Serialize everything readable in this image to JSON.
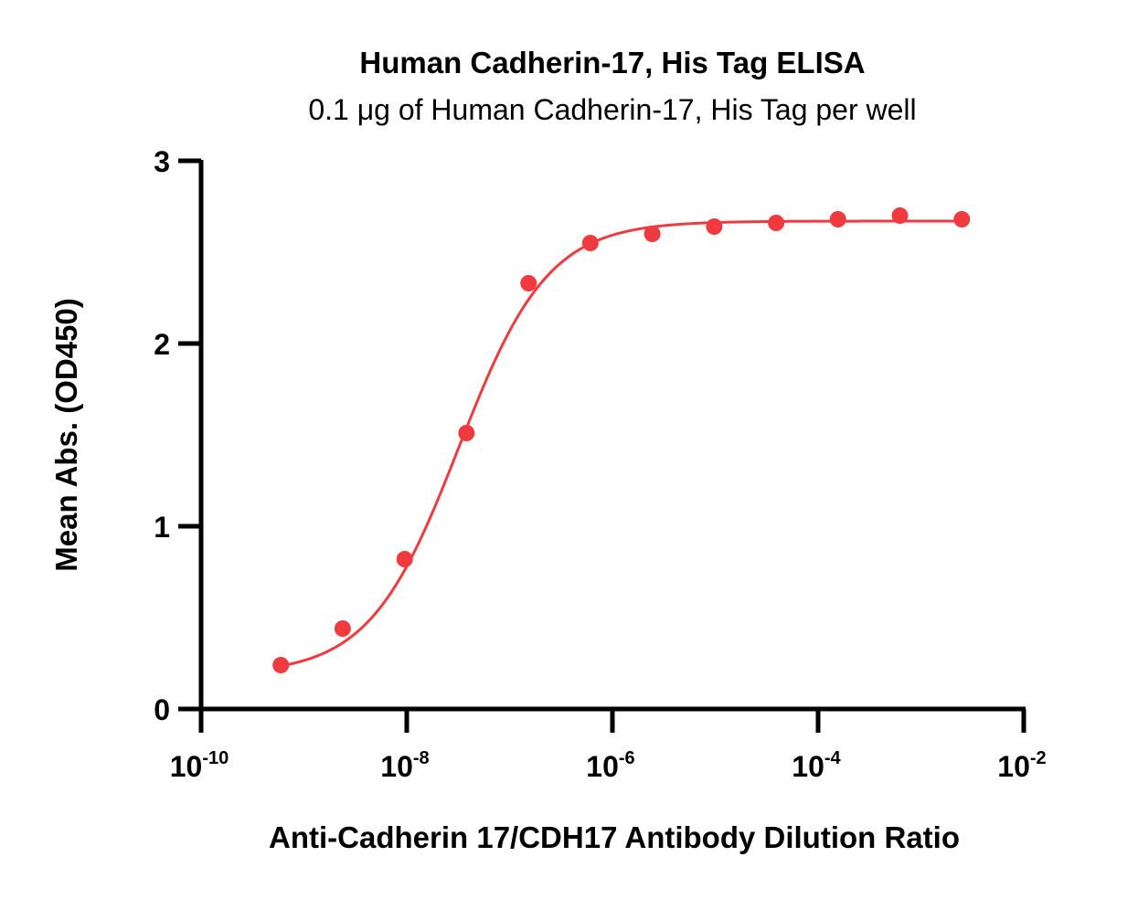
{
  "colors": {
    "series": "#ef3b40",
    "axis": "#000000"
  },
  "chart_data": {
    "type": "scatter",
    "title": "Human Cadherin-17, His Tag ELISA",
    "subtitle": "0.1 μg of Human Cadherin-17, His Tag per well",
    "xlabel": "Anti-Cadherin 17/CDH17 Antibody Dilution Ratio",
    "ylabel": "Mean Abs. (OD450)",
    "xscale": "log",
    "xlim": [
      1e-10,
      0.01
    ],
    "ylim": [
      0,
      3
    ],
    "xticks": [
      {
        "base": "10",
        "exp": "-10",
        "value": 1e-10
      },
      {
        "base": "10",
        "exp": "-8",
        "value": 1e-08
      },
      {
        "base": "10",
        "exp": "-6",
        "value": 1e-06
      },
      {
        "base": "10",
        "exp": "-4",
        "value": 0.0001
      },
      {
        "base": "10",
        "exp": "-2",
        "value": 0.01
      }
    ],
    "yticks": [
      "0",
      "1",
      "2",
      "3"
    ],
    "grid": false,
    "legend": "none",
    "series": [
      {
        "x": [
          5.96e-10,
          2.38e-09,
          9.54e-09,
          3.81e-08,
          1.53e-07,
          6.1e-07,
          2.44e-06,
          9.77e-06,
          3.91e-05,
          0.000156,
          0.000625,
          0.0025
        ],
        "y": [
          0.24,
          0.44,
          0.82,
          1.51,
          2.33,
          2.55,
          2.6,
          2.64,
          2.66,
          2.68,
          2.7,
          2.68
        ]
      }
    ],
    "fit": {
      "model": "4PL",
      "bottom": 0.19,
      "top": 2.67,
      "ec50": 3.2e-08,
      "hill": 1.0
    }
  }
}
